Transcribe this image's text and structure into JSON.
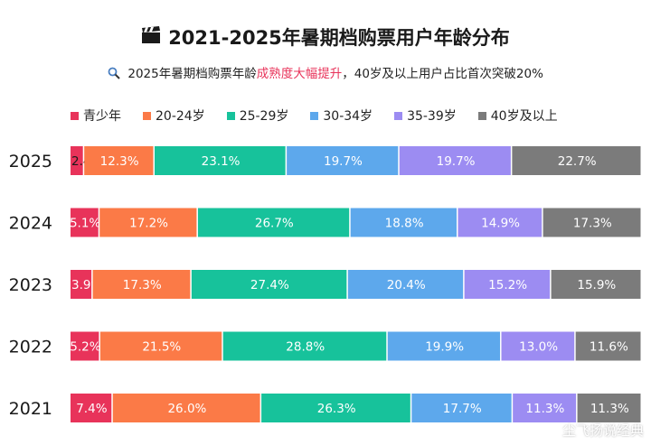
{
  "title": "2021-2025年暑期档购票用户年龄分布",
  "title_icon": "clapperboard-icon",
  "subtitle": {
    "prefix": "2025年暑期档购票年龄",
    "highlight": "成熟度大幅提升",
    "suffix": "，40岁及以上用户占比首次突破20%",
    "icon": "magnifier-icon",
    "highlight_color": "#e8335a"
  },
  "watermark": "尘飞扬说经典",
  "chart_data": {
    "type": "bar",
    "orientation": "horizontal",
    "stacked": true,
    "normalized": true,
    "categories": [
      "2025",
      "2024",
      "2023",
      "2022",
      "2021"
    ],
    "legend_position": "top",
    "grid": false,
    "series": [
      {
        "name": "青少年",
        "color": "#e8335a",
        "values": [
          2.4,
          5.1,
          3.9,
          5.2,
          7.4
        ]
      },
      {
        "name": "20-24岁",
        "color": "#fb7a47",
        "values": [
          12.3,
          17.2,
          17.3,
          21.5,
          26.0
        ]
      },
      {
        "name": "25-29岁",
        "color": "#17c29b",
        "values": [
          23.1,
          26.7,
          27.4,
          28.8,
          26.3
        ]
      },
      {
        "name": "30-34岁",
        "color": "#5da8ec",
        "values": [
          19.7,
          18.8,
          20.4,
          19.9,
          17.7
        ]
      },
      {
        "name": "35-39岁",
        "color": "#9c8cf2",
        "values": [
          19.7,
          14.9,
          15.2,
          13.0,
          11.3
        ]
      },
      {
        "name": "40岁及以上",
        "color": "#7b7b7b",
        "values": [
          22.7,
          17.3,
          15.9,
          11.6,
          11.3
        ]
      }
    ]
  }
}
